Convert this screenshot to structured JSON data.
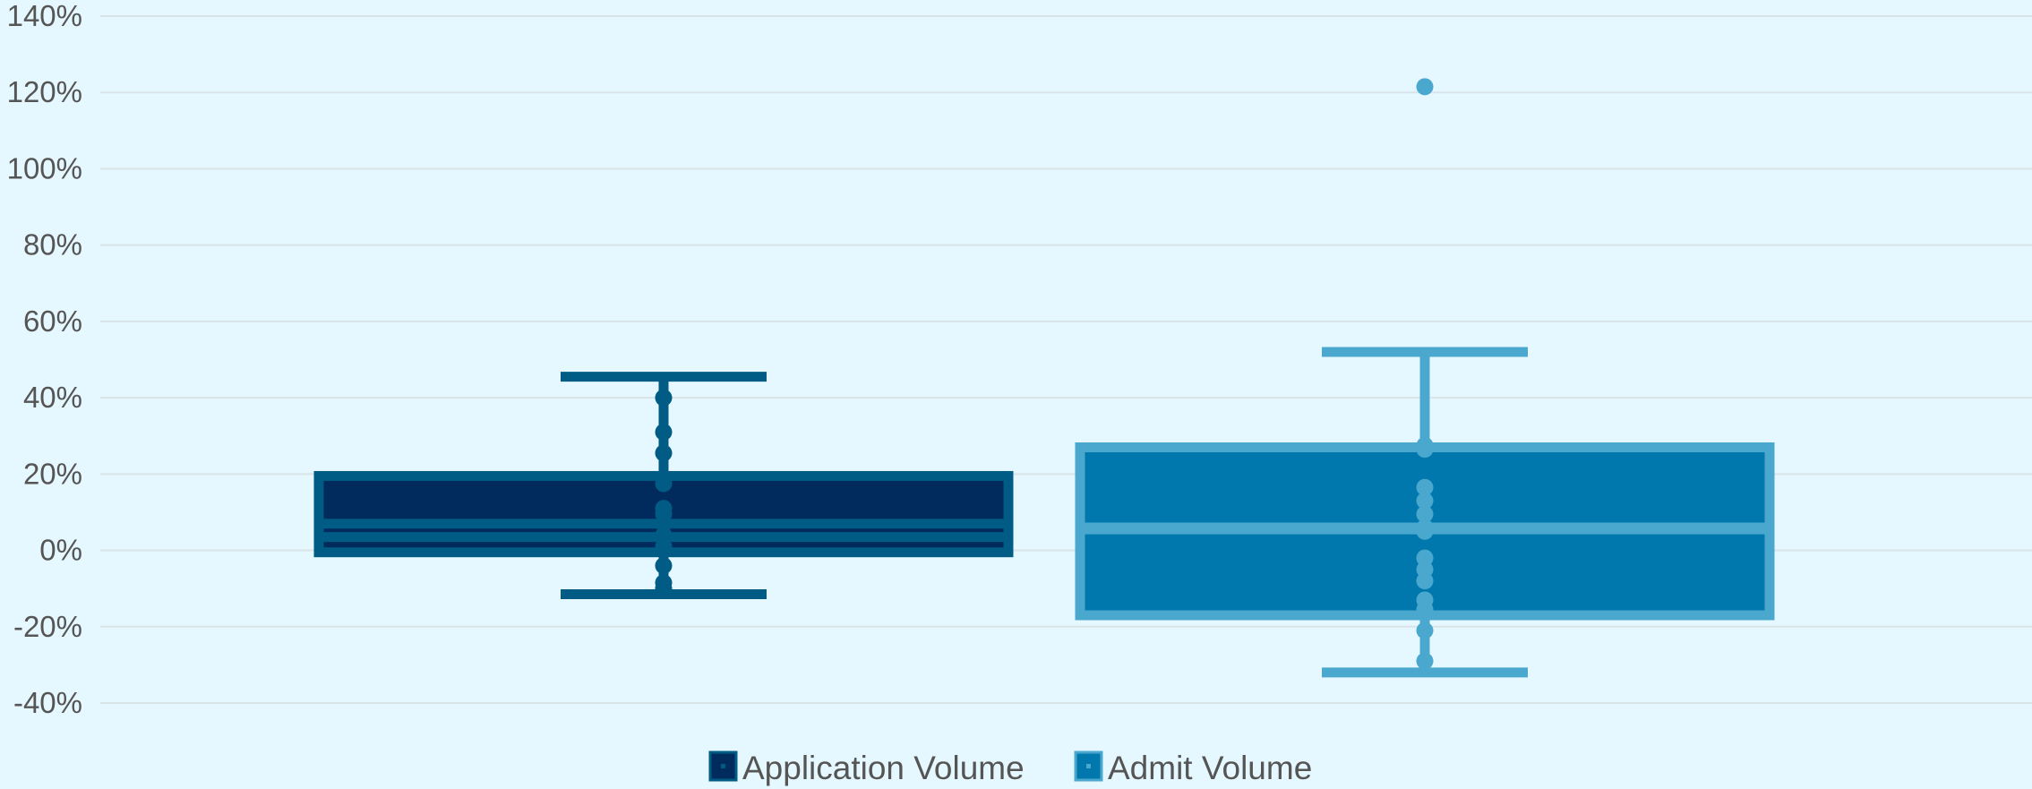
{
  "chart_data": {
    "type": "box",
    "title": "",
    "xlabel": "",
    "ylabel": "",
    "ylim": [
      -40,
      140
    ],
    "y_ticks": [
      -40,
      -20,
      0,
      20,
      40,
      60,
      80,
      100,
      120,
      140
    ],
    "y_tick_labels": [
      "-40%",
      "-20%",
      "0%",
      "20%",
      "40%",
      "60%",
      "80%",
      "100%",
      "120%",
      "140%"
    ],
    "grid": true,
    "legend_position": "bottom-center",
    "series": [
      {
        "name": "Application Volume",
        "fill_color": "#002b5c",
        "stroke_color": "#005b85",
        "min": -11.5,
        "q1": -0.5,
        "median": 3.5,
        "mean": 7,
        "q3": 19.5,
        "max": 45.5,
        "points": [
          40,
          31,
          25.5,
          17.5,
          11,
          9.5,
          7,
          4,
          1,
          -4,
          -8.5,
          -10
        ]
      },
      {
        "name": "Admit Volume",
        "fill_color": "#0078ad",
        "stroke_color": "#4aa8cf",
        "min": -32,
        "q1": -17,
        "median": 5.5,
        "mean": 6,
        "q3": 27,
        "max": 52,
        "points": [
          121.5,
          27.5,
          26.5,
          16.5,
          13,
          9.5,
          6,
          5,
          -2,
          -5,
          -8,
          -13,
          -15.5,
          -21,
          -29
        ]
      }
    ]
  }
}
